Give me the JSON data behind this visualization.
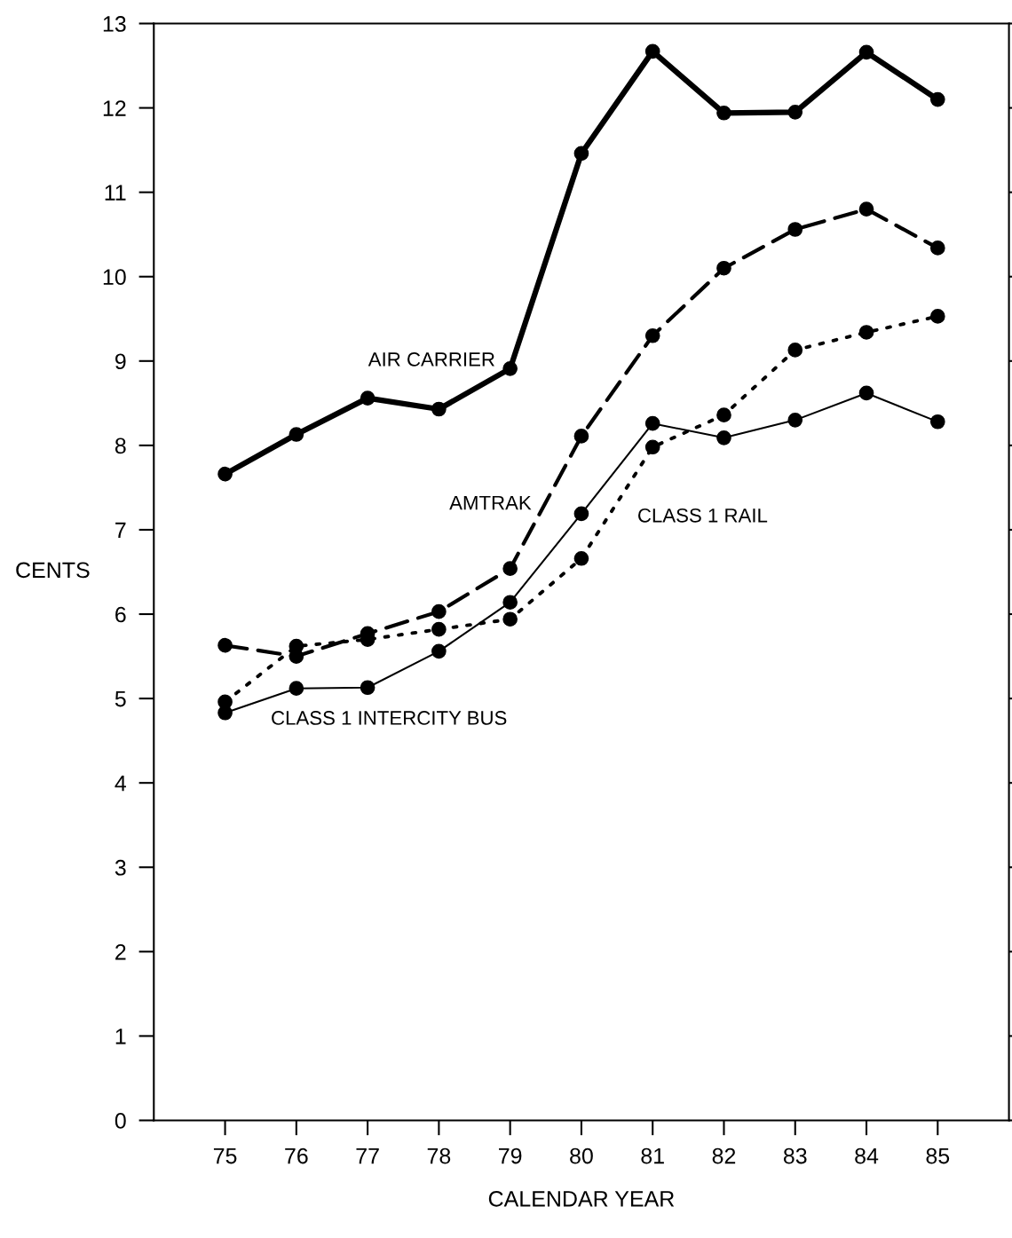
{
  "chart_data": {
    "type": "line",
    "xlabel": "CALENDAR YEAR",
    "ylabel": "CENTS",
    "categories": [
      "75",
      "76",
      "77",
      "78",
      "79",
      "80",
      "81",
      "82",
      "83",
      "84",
      "85"
    ],
    "ylim": [
      0,
      13
    ],
    "yticks": [
      0,
      1,
      2,
      3,
      4,
      5,
      6,
      7,
      8,
      9,
      10,
      11,
      12,
      13
    ],
    "grid": false,
    "legend": false,
    "marker": "circle",
    "series": [
      {
        "name": "AIR CARRIER",
        "color": "#000000",
        "line_style": "solid",
        "values": [
          7.66,
          8.13,
          8.56,
          8.43,
          8.91,
          11.46,
          12.67,
          11.94,
          11.95,
          12.66,
          12.1
        ]
      },
      {
        "name": "AMTRAK",
        "color": "#000000",
        "line_style": "dashed",
        "values": [
          5.63,
          5.5,
          5.77,
          6.03,
          6.54,
          8.11,
          9.3,
          10.1,
          10.56,
          10.8,
          10.34
        ]
      },
      {
        "name": "CLASS 1 RAIL",
        "color": "#000000",
        "line_style": "dotted",
        "values": [
          4.96,
          5.62,
          5.7,
          5.82,
          5.94,
          6.66,
          7.98,
          8.36,
          9.13,
          9.34,
          9.53
        ]
      },
      {
        "name": "CLASS 1 INTERCITY BUS",
        "color": "#000000",
        "line_style": "solid",
        "values": [
          4.83,
          5.12,
          5.13,
          5.56,
          6.14,
          7.19,
          8.26,
          8.09,
          8.3,
          8.62,
          8.28
        ]
      }
    ]
  }
}
